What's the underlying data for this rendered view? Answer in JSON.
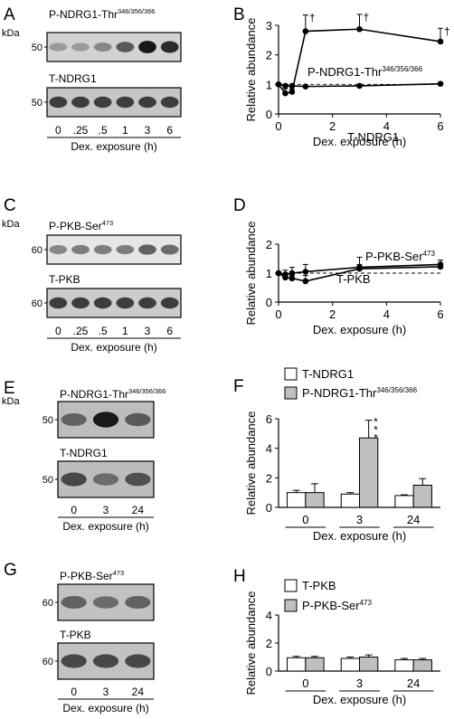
{
  "panels": {
    "A": {
      "letter": "A",
      "kda": "kDa",
      "blots": [
        {
          "label": "P-NDRG1-Thr",
          "sup": "346/356/366",
          "marker": "50",
          "bands": [
            0.25,
            0.25,
            0.35,
            0.6,
            0.95,
            0.85
          ],
          "bg": "#d2d2d2"
        },
        {
          "label": "T-NDRG1",
          "sup": "",
          "marker": "50",
          "bands": [
            0.75,
            0.75,
            0.75,
            0.75,
            0.75,
            0.75
          ],
          "bg": "#c6c6c6"
        }
      ],
      "lanes": [
        "0",
        ".25",
        ".5",
        "1",
        "3",
        "6"
      ],
      "xlabel": "Dex. exposure (h)"
    },
    "C": {
      "letter": "C",
      "kda": "kDa",
      "blots": [
        {
          "label": "P-PKB-Ser",
          "sup": "473",
          "marker": "60",
          "bands": [
            0.35,
            0.4,
            0.4,
            0.4,
            0.55,
            0.5
          ],
          "bg": "#e6e6e6"
        },
        {
          "label": "T-PKB",
          "sup": "",
          "marker": "60",
          "bands": [
            0.75,
            0.75,
            0.75,
            0.75,
            0.75,
            0.75
          ],
          "bg": "#cccccc"
        }
      ],
      "lanes": [
        "0",
        ".25",
        ".5",
        "1",
        "3",
        "6"
      ],
      "xlabel": "Dex. exposure (h)"
    },
    "E": {
      "letter": "E",
      "kda": "kDa",
      "blots": [
        {
          "label": "P-NDRG1-Thr",
          "sup": "346/356/366",
          "marker": "50",
          "bands": [
            0.55,
            0.95,
            0.6
          ],
          "bg": "#bdbdbd"
        },
        {
          "label": "T-NDRG1",
          "sup": "",
          "marker": "50",
          "bands": [
            0.7,
            0.5,
            0.65
          ],
          "bg": "#bdbdbd"
        }
      ],
      "lanes": [
        "0",
        "3",
        "24"
      ],
      "xlabel": "Dex. exposure (h)"
    },
    "G": {
      "letter": "G",
      "kda": "kDa",
      "blots": [
        {
          "label": "P-PKB-Ser",
          "sup": "473",
          "marker": "60",
          "bands": [
            0.55,
            0.5,
            0.55
          ],
          "bg": "#c2c2c2"
        },
        {
          "label": "T-PKB",
          "sup": "",
          "marker": "60",
          "bands": [
            0.7,
            0.7,
            0.7
          ],
          "bg": "#c2c2c2"
        }
      ],
      "lanes": [
        "0",
        "3",
        "24"
      ],
      "xlabel": "Dex. exposure (h)"
    }
  },
  "chart_data": [
    {
      "panel": "B",
      "type": "line",
      "xlabel": "Dex. exposure (h)",
      "ylabel": "Relative abundance",
      "xlim": [
        0,
        6
      ],
      "ylim": [
        0,
        3
      ],
      "xticks": [
        0,
        2,
        4,
        6
      ],
      "yticks": [
        0,
        1,
        2,
        3
      ],
      "reference_line": 1,
      "series": [
        {
          "name": "P-NDRG1-Thr",
          "name_sup": "346/356/366",
          "x": [
            0,
            0.25,
            0.5,
            1,
            3,
            6
          ],
          "y": [
            1.0,
            0.7,
            0.75,
            2.8,
            2.87,
            2.45
          ],
          "err": [
            0,
            0.15,
            0.1,
            0.55,
            0.5,
            0.45
          ],
          "marks": [
            "",
            "",
            "",
            "†",
            "†",
            "†"
          ]
        },
        {
          "name": "T-NDRG1",
          "name_sup": "",
          "x": [
            0,
            0.25,
            0.5,
            1,
            3,
            6
          ],
          "y": [
            1.0,
            0.95,
            0.95,
            0.93,
            0.95,
            1.02
          ],
          "err": [
            0,
            0.05,
            0.05,
            0.05,
            0.05,
            0.05
          ],
          "marks": []
        }
      ]
    },
    {
      "panel": "D",
      "type": "line",
      "xlabel": "Dex. exposure (h)",
      "ylabel": "Relative abundance",
      "xlim": [
        0,
        6
      ],
      "ylim": [
        0,
        2
      ],
      "xticks": [
        0,
        2,
        4,
        6
      ],
      "yticks": [
        0,
        1,
        2
      ],
      "reference_line": 1,
      "series": [
        {
          "name": "P-PKB-Ser",
          "name_sup": "473",
          "x": [
            0,
            0.25,
            0.5,
            1,
            3,
            6
          ],
          "y": [
            1.0,
            0.95,
            1.0,
            1.05,
            1.2,
            1.3
          ],
          "err": [
            0,
            0.15,
            0.2,
            0.25,
            0.35,
            0.15
          ],
          "marks": []
        },
        {
          "name": "T-PKB",
          "name_sup": "",
          "x": [
            0,
            0.25,
            0.5,
            1,
            3,
            6
          ],
          "y": [
            1.0,
            0.85,
            0.82,
            0.72,
            1.15,
            1.22
          ],
          "err": [
            0,
            0.1,
            0.1,
            0.2,
            0.15,
            0.1
          ],
          "marks": []
        }
      ]
    },
    {
      "panel": "F",
      "type": "bar",
      "xlabel": "Dex. exposure (h)",
      "ylabel": "Relative abundance",
      "ylim": [
        0,
        6
      ],
      "yticks": [
        0,
        2,
        4,
        6
      ],
      "categories": [
        "0",
        "3",
        "24"
      ],
      "series": [
        {
          "name": "T-NDRG1",
          "name_sup": "",
          "fill": "#ffffff",
          "values": [
            1.0,
            0.9,
            0.8
          ],
          "err": [
            0.15,
            0.1,
            0.05
          ]
        },
        {
          "name": "P-NDRG1-Thr",
          "name_sup": "346/356/366",
          "fill": "#bfbfbf",
          "values": [
            1.0,
            4.7,
            1.5
          ],
          "err": [
            0.6,
            1.2,
            0.45
          ]
        }
      ],
      "annotations": [
        {
          "category": 1,
          "series": 1,
          "text": "***"
        }
      ]
    },
    {
      "panel": "H",
      "type": "bar",
      "xlabel": "Dex. exposure (h)",
      "ylabel": "Relative abundance",
      "ylim": [
        0,
        4
      ],
      "yticks": [
        0,
        2,
        4
      ],
      "categories": [
        "0",
        "3",
        "24"
      ],
      "series": [
        {
          "name": "T-PKB",
          "name_sup": "",
          "fill": "#ffffff",
          "values": [
            0.95,
            0.9,
            0.8
          ],
          "err": [
            0.1,
            0.1,
            0.1
          ]
        },
        {
          "name": "P-PKB-Ser",
          "name_sup": "473",
          "fill": "#bfbfbf",
          "values": [
            0.95,
            1.0,
            0.8
          ],
          "err": [
            0.1,
            0.15,
            0.1
          ]
        }
      ],
      "annotations": []
    }
  ]
}
